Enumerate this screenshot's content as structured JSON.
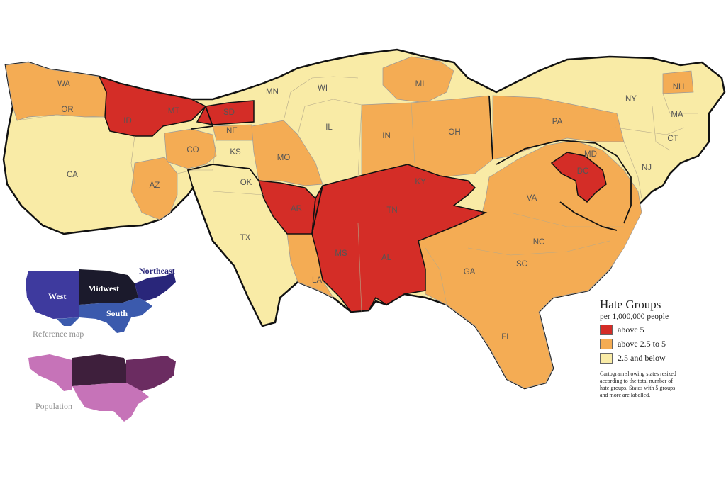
{
  "colors": {
    "above5": "#d42d27",
    "above2_5to5": "#f4ac54",
    "below2_5": "#f9eba6",
    "border": "#111111",
    "west": "#3e3a9e",
    "midwest": "#1b1a2c",
    "northeast": "#29267a",
    "south": "#3b5aad",
    "pop_dark": "#3e1f3c",
    "pop_mid": "#6b2c61",
    "pop_light": "#c673b8"
  },
  "legend": {
    "title": "Hate Groups",
    "subtitle": "per 1,000,000 people",
    "items": [
      {
        "label": "above 5",
        "color": "#d42d27"
      },
      {
        "label": "above 2.5 to 5",
        "color": "#f4ac54"
      },
      {
        "label": "2.5 and below",
        "color": "#f9eba6"
      }
    ],
    "note": "Cartogram showing states resized according to the total number of hate groups. States with 5 groups and more are labelled."
  },
  "states": [
    {
      "label": "WA"
    },
    {
      "label": "OR"
    },
    {
      "label": "CA"
    },
    {
      "label": "ID"
    },
    {
      "label": "MT"
    },
    {
      "label": "SD"
    },
    {
      "label": "NE"
    },
    {
      "label": "CO"
    },
    {
      "label": "KS"
    },
    {
      "label": "AZ"
    },
    {
      "label": "OK"
    },
    {
      "label": "TX"
    },
    {
      "label": "MN"
    },
    {
      "label": "WI"
    },
    {
      "label": "MI"
    },
    {
      "label": "IL"
    },
    {
      "label": "MO"
    },
    {
      "label": "IN"
    },
    {
      "label": "OH"
    },
    {
      "label": "AR"
    },
    {
      "label": "LA"
    },
    {
      "label": "MS"
    },
    {
      "label": "AL"
    },
    {
      "label": "TN"
    },
    {
      "label": "KY"
    },
    {
      "label": "GA"
    },
    {
      "label": "FL"
    },
    {
      "label": "SC"
    },
    {
      "label": "NC"
    },
    {
      "label": "VA"
    },
    {
      "label": "PA"
    },
    {
      "label": "NY"
    },
    {
      "label": "NH"
    },
    {
      "label": "MA"
    },
    {
      "label": "CT"
    },
    {
      "label": "NJ"
    },
    {
      "label": "MD"
    },
    {
      "label": "DC"
    }
  ],
  "reference_map": {
    "label": "Reference map",
    "regions": {
      "west": "West",
      "midwest": "Midwest",
      "south": "South",
      "northeast": "Northeast"
    }
  },
  "population_map": {
    "label": "Population"
  }
}
